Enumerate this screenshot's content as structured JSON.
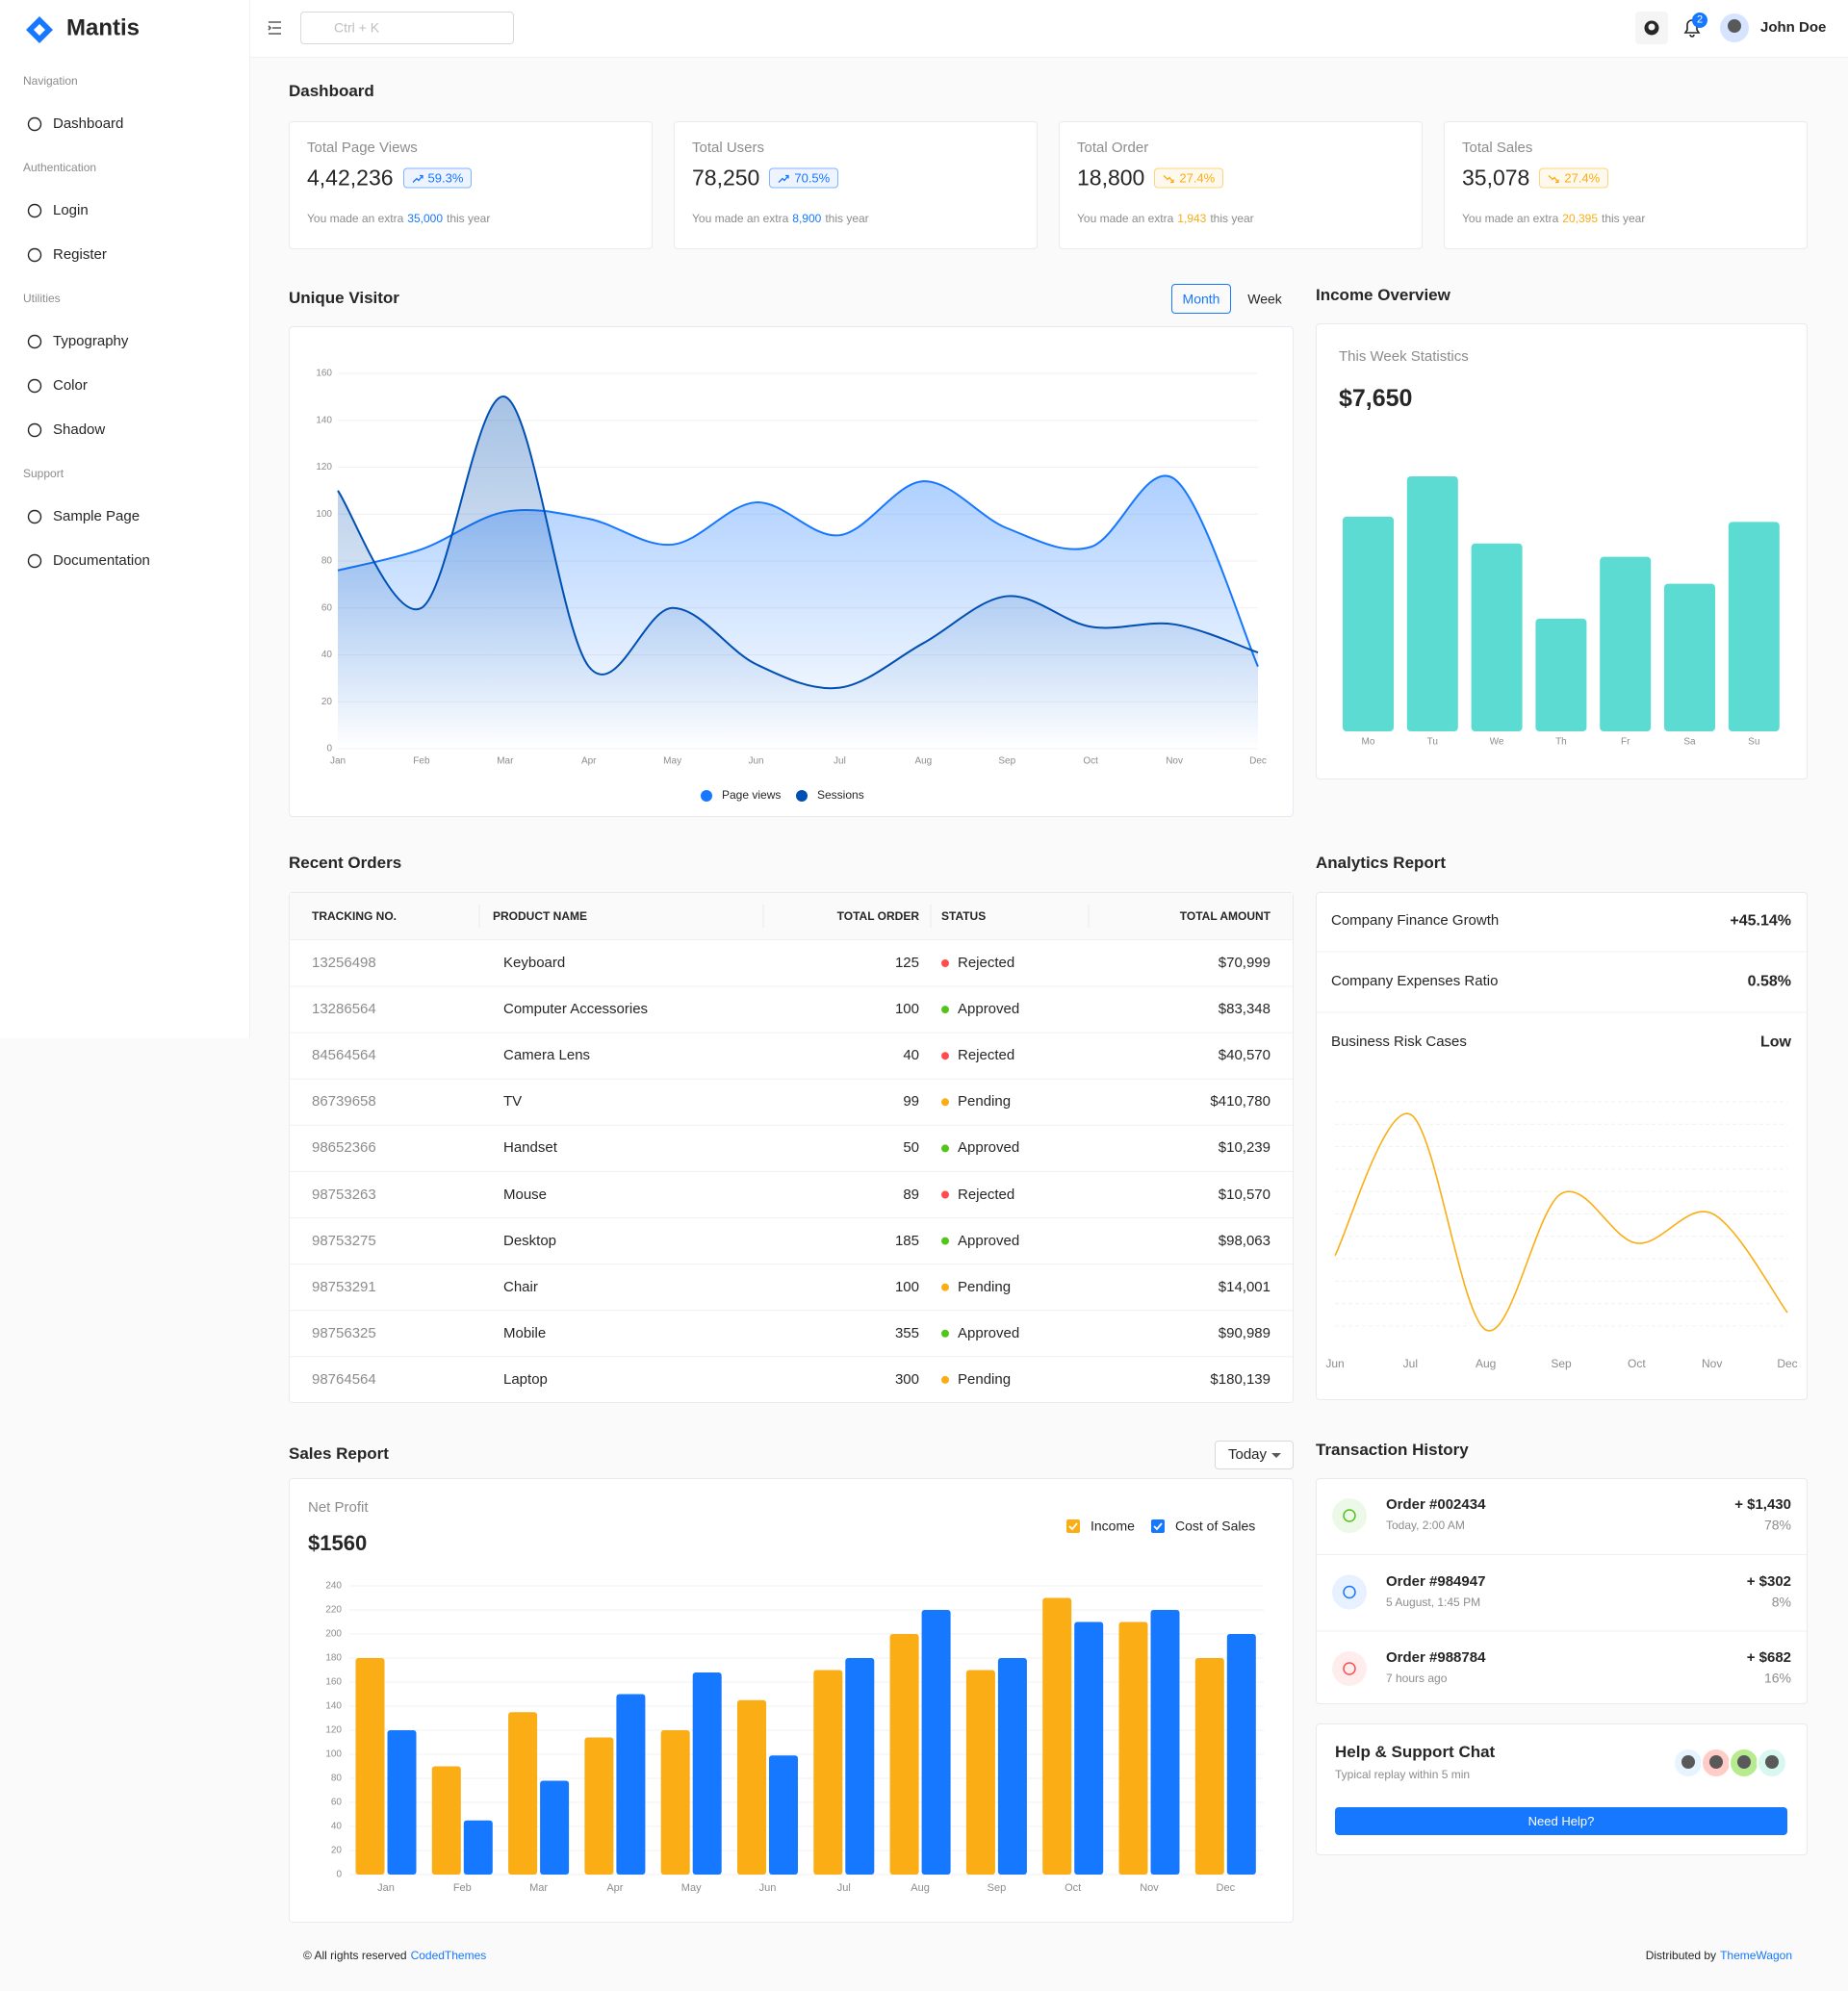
{
  "brand": "Mantis",
  "search_placeholder": "Ctrl + K",
  "notifications": 2,
  "user_name": "John Doe",
  "nav": [
    {
      "title": "Navigation",
      "items": [
        "Dashboard"
      ]
    },
    {
      "title": "Authentication",
      "items": [
        "Login",
        "Register"
      ]
    },
    {
      "title": "Utilities",
      "items": [
        "Typography",
        "Color",
        "Shadow"
      ]
    },
    {
      "title": "Support",
      "items": [
        "Sample Page",
        "Documentation"
      ]
    }
  ],
  "page_title": "Dashboard",
  "stats": [
    {
      "title": "Total Page Views",
      "value": "4,42,236",
      "change": "59.3%",
      "trend": "up",
      "color": "#1677ff",
      "note_prefix": "You made an extra",
      "note_value": "35,000",
      "note_suffix": "this year"
    },
    {
      "title": "Total Users",
      "value": "78,250",
      "change": "70.5%",
      "trend": "up",
      "color": "#1677ff",
      "note_prefix": "You made an extra",
      "note_value": "8,900",
      "note_suffix": "this year"
    },
    {
      "title": "Total Order",
      "value": "18,800",
      "change": "27.4%",
      "trend": "down",
      "color": "#faad14",
      "note_prefix": "You made an extra",
      "note_value": "1,943",
      "note_suffix": "this year"
    },
    {
      "title": "Total Sales",
      "value": "35,078",
      "change": "27.4%",
      "trend": "down",
      "color": "#faad14",
      "note_prefix": "You made an extra",
      "note_value": "20,395",
      "note_suffix": "this year"
    }
  ],
  "chart_data": [
    {
      "type": "area",
      "title": "Unique Visitor",
      "toggle": [
        "Month",
        "Week"
      ],
      "categories": [
        "Jan",
        "Feb",
        "Mar",
        "Apr",
        "May",
        "Jun",
        "Jul",
        "Aug",
        "Sep",
        "Oct",
        "Nov",
        "Dec"
      ],
      "series": [
        {
          "name": "Page views",
          "color": "#1677ff",
          "values": [
            76,
            85,
            101,
            98,
            87,
            105,
            91,
            114,
            94,
            86,
            115,
            35
          ]
        },
        {
          "name": "Sessions",
          "color": "#0050b3",
          "values": [
            110,
            60,
            150,
            35,
            60,
            36,
            26,
            45,
            65,
            52,
            53,
            41
          ]
        }
      ],
      "ylim": [
        0,
        160
      ],
      "yticks": [
        0,
        20,
        40,
        60,
        80,
        100,
        120,
        140,
        160
      ],
      "grid": true
    },
    {
      "type": "bar",
      "title": "Income Overview",
      "subtitle": "This Week Statistics",
      "total": "$7,650",
      "categories": [
        "Mo",
        "Tu",
        "We",
        "Th",
        "Fr",
        "Sa",
        "Su"
      ],
      "values": [
        80,
        95,
        70,
        42,
        65,
        55,
        78
      ],
      "color": "#5cdbd3"
    },
    {
      "type": "line",
      "title": "Analytics Report",
      "categories": [
        "Jun",
        "Jul",
        "Aug",
        "Sep",
        "Oct",
        "Nov",
        "Dec"
      ],
      "values": [
        58,
        115,
        28,
        83,
        63,
        75,
        35
      ],
      "color": "#faad14"
    },
    {
      "type": "grouped-bar",
      "title": "Sales Report",
      "filter": "Today",
      "subtitle": "Net Profit",
      "total": "$1560",
      "categories": [
        "Jan",
        "Feb",
        "Mar",
        "Apr",
        "May",
        "Jun",
        "Jul",
        "Aug",
        "Sep",
        "Oct",
        "Nov",
        "Dec"
      ],
      "series": [
        {
          "name": "Income",
          "color": "#faad14",
          "values": [
            180,
            90,
            135,
            114,
            120,
            145,
            170,
            200,
            170,
            230,
            210,
            180
          ]
        },
        {
          "name": "Cost of Sales",
          "color": "#1677ff",
          "values": [
            120,
            45,
            78,
            150,
            168,
            99,
            180,
            220,
            180,
            210,
            220,
            200
          ]
        }
      ],
      "ylim": [
        0,
        240
      ],
      "yticks": [
        0,
        20,
        40,
        60,
        80,
        100,
        120,
        140,
        160,
        180,
        200,
        220,
        240
      ],
      "grid": true
    }
  ],
  "analytics_items": [
    {
      "label": "Company Finance Growth",
      "value": "+45.14%"
    },
    {
      "label": "Company Expenses Ratio",
      "value": "0.58%"
    },
    {
      "label": "Business Risk Cases",
      "value": "Low"
    }
  ],
  "orders": {
    "title": "Recent Orders",
    "columns": [
      "TRACKING NO.",
      "PRODUCT NAME",
      "TOTAL ORDER",
      "STATUS",
      "TOTAL AMOUNT"
    ],
    "rows": [
      [
        "13256498",
        "Keyboard",
        125,
        "Rejected",
        "$70,999"
      ],
      [
        "13286564",
        "Computer Accessories",
        100,
        "Approved",
        "$83,348"
      ],
      [
        "84564564",
        "Camera Lens",
        40,
        "Rejected",
        "$40,570"
      ],
      [
        "86739658",
        "TV",
        99,
        "Pending",
        "$410,780"
      ],
      [
        "98652366",
        "Handset",
        50,
        "Approved",
        "$10,239"
      ],
      [
        "98753263",
        "Mouse",
        89,
        "Rejected",
        "$10,570"
      ],
      [
        "98753275",
        "Desktop",
        185,
        "Approved",
        "$98,063"
      ],
      [
        "98753291",
        "Chair",
        100,
        "Pending",
        "$14,001"
      ],
      [
        "98756325",
        "Mobile",
        355,
        "Approved",
        "$90,989"
      ],
      [
        "98764564",
        "Laptop",
        300,
        "Pending",
        "$180,139"
      ]
    ],
    "status_colors": {
      "Rejected": "#ff4d4f",
      "Approved": "#52c41a",
      "Pending": "#faad14"
    }
  },
  "transactions": {
    "title": "Transaction History",
    "items": [
      {
        "order": "Order #002434",
        "time": "Today, 2:00 AM",
        "amount": "+ $1,430",
        "percent": "78%",
        "color": "#52c41a"
      },
      {
        "order": "Order #984947",
        "time": "5 August, 1:45 PM",
        "amount": "+ $302",
        "percent": "8%",
        "color": "#1677ff"
      },
      {
        "order": "Order #988784",
        "time": "7 hours ago",
        "amount": "+ $682",
        "percent": "16%",
        "color": "#ff4d4f"
      }
    ]
  },
  "help": {
    "title": "Help & Support Chat",
    "subtitle": "Typical replay within 5 min",
    "button": "Need Help?"
  },
  "footer": {
    "left": "© All rights reserved",
    "left_link": "CodedThemes",
    "right": "Distributed by",
    "right_link": "ThemeWagon"
  }
}
